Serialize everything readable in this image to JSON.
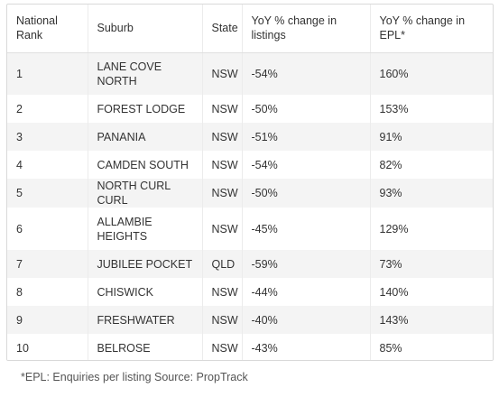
{
  "table": {
    "headers": {
      "rank": "National Rank",
      "suburb": "Suburb",
      "state": "State",
      "listings": "YoY % change in listings",
      "epl": "YoY % change in EPL*"
    },
    "rows": [
      {
        "rank": "1",
        "suburb": "LANE COVE NORTH",
        "state": "NSW",
        "listings": "-54%",
        "epl": "160%"
      },
      {
        "rank": "2",
        "suburb": "FOREST LODGE",
        "state": "NSW",
        "listings": "-50%",
        "epl": "153%"
      },
      {
        "rank": "3",
        "suburb": "PANANIA",
        "state": "NSW",
        "listings": "-51%",
        "epl": "91%"
      },
      {
        "rank": "4",
        "suburb": "CAMDEN SOUTH",
        "state": "NSW",
        "listings": "-54%",
        "epl": "82%"
      },
      {
        "rank": "5",
        "suburb": "NORTH CURL CURL",
        "state": "NSW",
        "listings": "-50%",
        "epl": "93%"
      },
      {
        "rank": "6",
        "suburb": "ALLAMBIE HEIGHTS",
        "state": "NSW",
        "listings": "-45%",
        "epl": "129%"
      },
      {
        "rank": "7",
        "suburb": "JUBILEE POCKET",
        "state": "QLD",
        "listings": "-59%",
        "epl": "73%"
      },
      {
        "rank": "8",
        "suburb": "CHISWICK",
        "state": "NSW",
        "listings": "-44%",
        "epl": "140%"
      },
      {
        "rank": "9",
        "suburb": "FRESHWATER",
        "state": "NSW",
        "listings": "-40%",
        "epl": "143%"
      },
      {
        "rank": "10",
        "suburb": "BELROSE",
        "state": "NSW",
        "listings": "-43%",
        "epl": "85%"
      }
    ]
  },
  "footnote": "*EPL: Enquiries per listing Source: PropTrack",
  "colors": {
    "stripe": "#f4f4f4",
    "text": "#333333",
    "border": "#d9d9d9"
  }
}
